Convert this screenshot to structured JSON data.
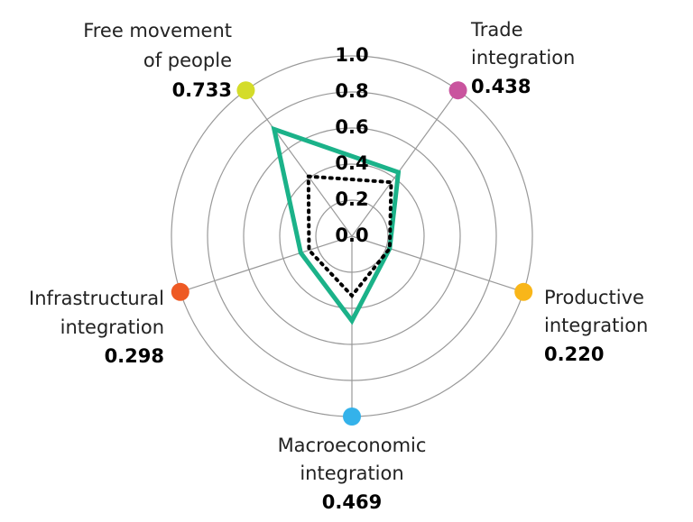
{
  "chart_data": {
    "type": "radar",
    "categories": [
      [
        "Free movement",
        "of people"
      ],
      [
        "Trade",
        "integration"
      ],
      [
        "Productive",
        "integration"
      ],
      [
        "Macroeconomic",
        "integration"
      ],
      [
        "Infrastructural",
        "integration"
      ]
    ],
    "category_colors": [
      "#d4dc2a",
      "#c9549e",
      "#f9b619",
      "#34b2ea",
      "#ee5a24"
    ],
    "series": [
      {
        "color": "#1bb289",
        "line_style": "solid",
        "values": [
          0.733,
          0.438,
          0.22,
          0.469,
          0.298
        ],
        "value_labels": [
          "0.733",
          "0.438",
          "0.220",
          "0.469",
          "0.298"
        ]
      },
      {
        "color": "#000000",
        "line_style": "dotted",
        "values": [
          0.41,
          0.37,
          0.22,
          0.33,
          0.25
        ]
      }
    ],
    "rlim": [
      0,
      1
    ],
    "rticks": [
      {
        "value": 0,
        "label": "0.0"
      },
      0.2,
      0.4,
      0.6,
      0.8,
      {
        "value": 1,
        "label": "1.0"
      }
    ],
    "grid": true
  }
}
